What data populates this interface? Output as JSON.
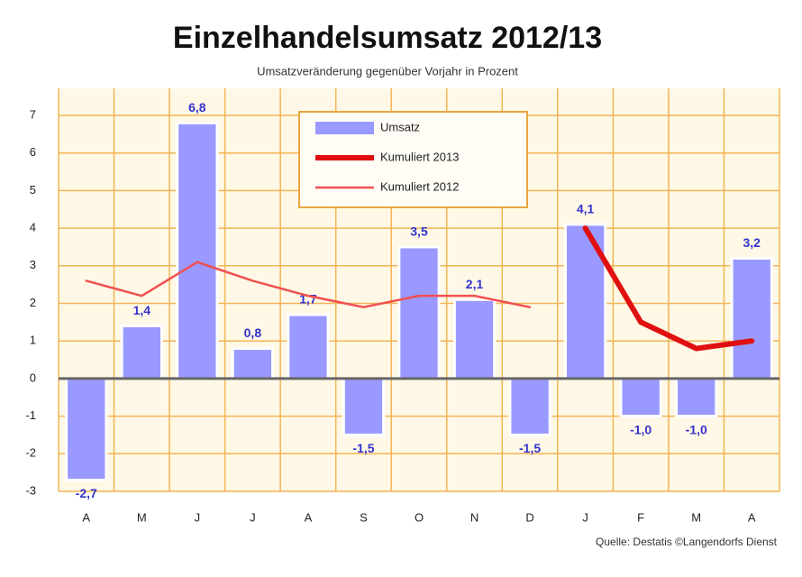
{
  "chart_data": {
    "type": "bar",
    "title": "Einzelhandelsumsatz 2012/13",
    "subtitle": "Umsatzveränderung gegenüber Vorjahr in Prozent",
    "source": "Quelle: Destatis ©Langendorfs Dienst",
    "categories": [
      "A",
      "M",
      "J",
      "J",
      "A",
      "S",
      "O",
      "N",
      "D",
      "J",
      "F",
      "M",
      "A"
    ],
    "series": [
      {
        "name": "Umsatz",
        "type": "bar",
        "color": "#9999ff",
        "values": [
          -2.7,
          1.4,
          6.8,
          0.8,
          1.7,
          -1.5,
          3.5,
          2.1,
          -1.5,
          4.1,
          -1.0,
          -1.0,
          3.2
        ],
        "value_labels": [
          "-2,7",
          "1,4",
          "6,8",
          "0,8",
          "1,7",
          "-1,5",
          "3,5",
          "2,1",
          "-1,5",
          "4,1",
          "-1,0",
          "-1,0",
          "3,2"
        ]
      },
      {
        "name": "Kumuliert 2013",
        "type": "line",
        "color": "#e01010",
        "values": [
          null,
          null,
          null,
          null,
          null,
          null,
          null,
          null,
          null,
          4.0,
          1.5,
          0.8,
          1.0
        ]
      },
      {
        "name": "Kumuliert 2012",
        "type": "line",
        "color": "#f05050",
        "values": [
          2.6,
          2.2,
          3.1,
          2.6,
          2.2,
          1.9,
          2.2,
          2.2,
          1.9,
          null,
          null,
          null,
          null
        ]
      }
    ],
    "ylim": [
      -3,
      7
    ],
    "yticks": [
      -3,
      -2,
      -1,
      0,
      1,
      2,
      3,
      4,
      5,
      6,
      7
    ],
    "grid": true,
    "legend": "top"
  }
}
